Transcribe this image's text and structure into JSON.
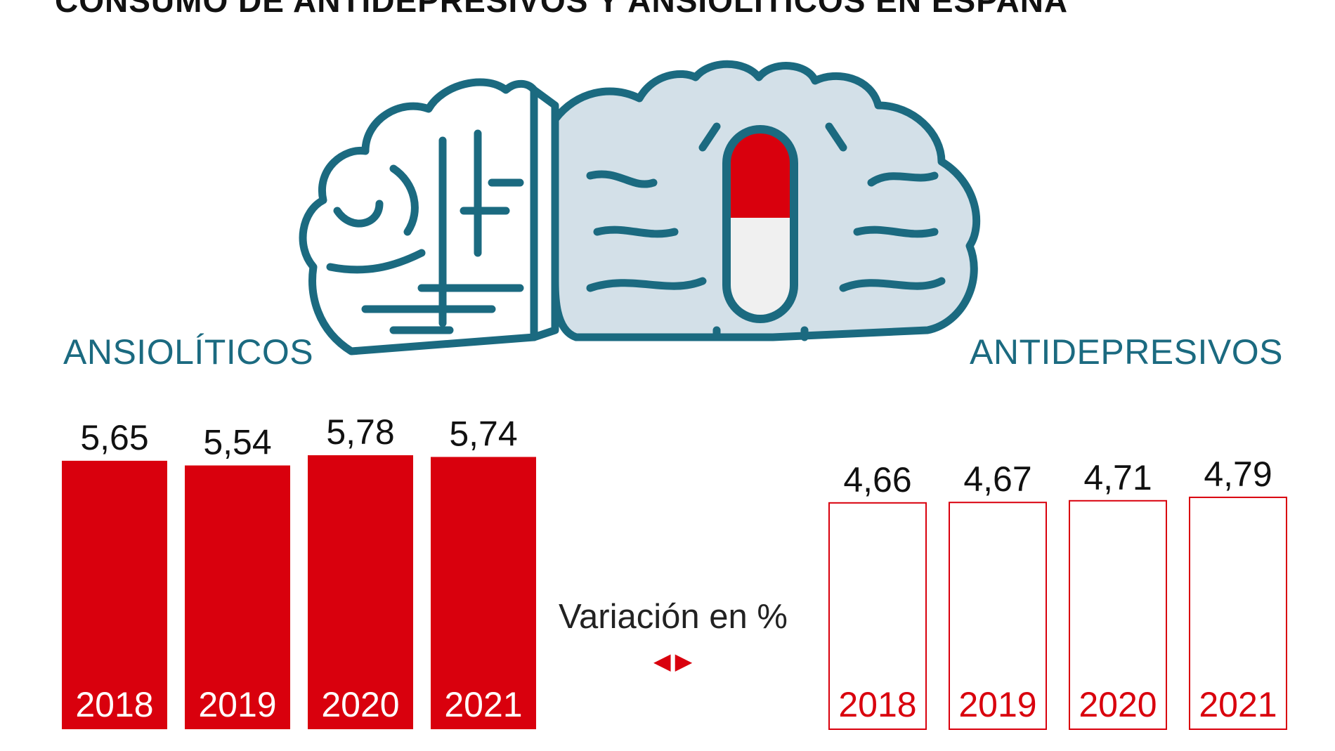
{
  "title": "CONSUMO DE ANTIDEPRESIVOS Y ANSIOLÍTICOS EN ESPAÑA",
  "legend": {
    "label": "Variación en %",
    "arrow_left": "◀",
    "arrow_right": "▶"
  },
  "colors": {
    "accent_red": "#d9000d",
    "teal": "#1b6a80",
    "brain_fill": "#d3e0e8"
  },
  "icons": [
    "brain-icon",
    "capsule-icon"
  ],
  "chart_data": [
    {
      "type": "bar",
      "series_label": "ANSIOLÍTICOS",
      "categories": [
        "2018",
        "2019",
        "2020",
        "2021"
      ],
      "values": [
        5.65,
        5.54,
        5.78,
        5.74
      ],
      "value_labels": [
        "5,65",
        "5,54",
        "5,78",
        "5,74"
      ],
      "style": "filled",
      "color": "#d9000d"
    },
    {
      "type": "bar",
      "series_label": "ANTIDEPRESIVOS",
      "categories": [
        "2018",
        "2019",
        "2020",
        "2021"
      ],
      "values": [
        4.66,
        4.67,
        4.71,
        4.79
      ],
      "value_labels": [
        "4,66",
        "4,67",
        "4,71",
        "4,79"
      ],
      "style": "outline",
      "color": "#d9000d"
    }
  ]
}
